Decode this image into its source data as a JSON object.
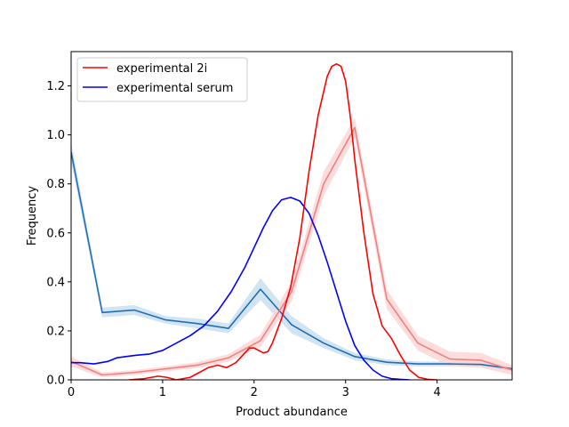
{
  "chart_data": {
    "type": "line",
    "title": "",
    "xlabel": "Product abundance",
    "ylabel": "Frequency",
    "xlim": [
      0,
      4.82
    ],
    "ylim": [
      0,
      1.34
    ],
    "xticks": [
      0,
      1,
      2,
      3,
      4
    ],
    "xtick_labels": [
      "0",
      "1",
      "2",
      "3",
      "4"
    ],
    "yticks": [
      0.0,
      0.2,
      0.4,
      0.6,
      0.8,
      1.0,
      1.2
    ],
    "ytick_labels": [
      "0.0",
      "0.2",
      "0.4",
      "0.6",
      "0.8",
      "1.0",
      "1.2"
    ],
    "grid": false,
    "legend_position": "upper-left",
    "series": [
      {
        "name": "experimental 2i",
        "color": "#ff0000",
        "x": [
          0.63,
          0.8,
          0.95,
          1.05,
          1.15,
          1.3,
          1.4,
          1.5,
          1.6,
          1.7,
          1.8,
          1.9,
          1.95,
          2.0,
          2.05,
          2.1,
          2.15,
          2.2,
          2.3,
          2.4,
          2.5,
          2.6,
          2.7,
          2.8,
          2.85,
          2.9,
          2.95,
          3.0,
          3.05,
          3.1,
          3.2,
          3.3,
          3.4,
          3.5,
          3.6,
          3.7,
          3.8,
          3.9,
          4.0
        ],
        "y": [
          0.0,
          0.005,
          0.015,
          0.01,
          0.0,
          0.01,
          0.03,
          0.05,
          0.06,
          0.05,
          0.07,
          0.11,
          0.13,
          0.13,
          0.12,
          0.11,
          0.115,
          0.15,
          0.25,
          0.38,
          0.58,
          0.85,
          1.08,
          1.24,
          1.28,
          1.29,
          1.28,
          1.22,
          1.08,
          0.9,
          0.6,
          0.35,
          0.22,
          0.17,
          0.1,
          0.04,
          0.01,
          0.002,
          0.0
        ]
      },
      {
        "name": "experimental serum",
        "color": "#0000ff",
        "x": [
          0.0,
          0.1,
          0.25,
          0.4,
          0.5,
          0.7,
          0.85,
          1.0,
          1.15,
          1.3,
          1.45,
          1.6,
          1.75,
          1.9,
          2.0,
          2.1,
          2.2,
          2.3,
          2.4,
          2.5,
          2.6,
          2.7,
          2.8,
          2.9,
          3.0,
          3.1,
          3.2,
          3.3,
          3.4,
          3.5,
          3.6,
          3.7
        ],
        "y": [
          0.07,
          0.07,
          0.065,
          0.075,
          0.09,
          0.1,
          0.105,
          0.12,
          0.15,
          0.18,
          0.22,
          0.28,
          0.36,
          0.46,
          0.54,
          0.62,
          0.69,
          0.735,
          0.745,
          0.73,
          0.68,
          0.59,
          0.48,
          0.36,
          0.24,
          0.14,
          0.08,
          0.04,
          0.015,
          0.005,
          0.002,
          0.0
        ]
      },
      {
        "name": "",
        "color": "#f08080",
        "band_color": "#fcd3d3",
        "x": [
          0.0,
          0.34,
          0.69,
          1.03,
          1.38,
          1.72,
          2.07,
          2.41,
          2.76,
          3.1,
          3.45,
          3.79,
          4.14,
          4.48,
          4.82
        ],
        "y": [
          0.075,
          0.02,
          0.03,
          0.045,
          0.06,
          0.09,
          0.16,
          0.36,
          0.8,
          1.03,
          0.33,
          0.15,
          0.085,
          0.08,
          0.04
        ],
        "band": [
          0.02,
          0.01,
          0.01,
          0.01,
          0.012,
          0.015,
          0.025,
          0.04,
          0.05,
          0.04,
          0.04,
          0.03,
          0.03,
          0.03,
          0.02
        ]
      },
      {
        "name": "",
        "color": "#1f6fb4",
        "band_color": "#c7dcef",
        "x": [
          0.0,
          0.34,
          0.69,
          1.03,
          1.38,
          1.72,
          2.07,
          2.41,
          2.76,
          3.1,
          3.45,
          3.79,
          4.14,
          4.48,
          4.82
        ],
        "y": [
          0.93,
          0.275,
          0.285,
          0.245,
          0.23,
          0.21,
          0.37,
          0.225,
          0.15,
          0.095,
          0.072,
          0.065,
          0.065,
          0.063,
          0.045
        ],
        "band": [
          0.04,
          0.02,
          0.02,
          0.015,
          0.02,
          0.02,
          0.045,
          0.035,
          0.02,
          0.015,
          0.012,
          0.01,
          0.01,
          0.01,
          0.01
        ]
      }
    ]
  }
}
